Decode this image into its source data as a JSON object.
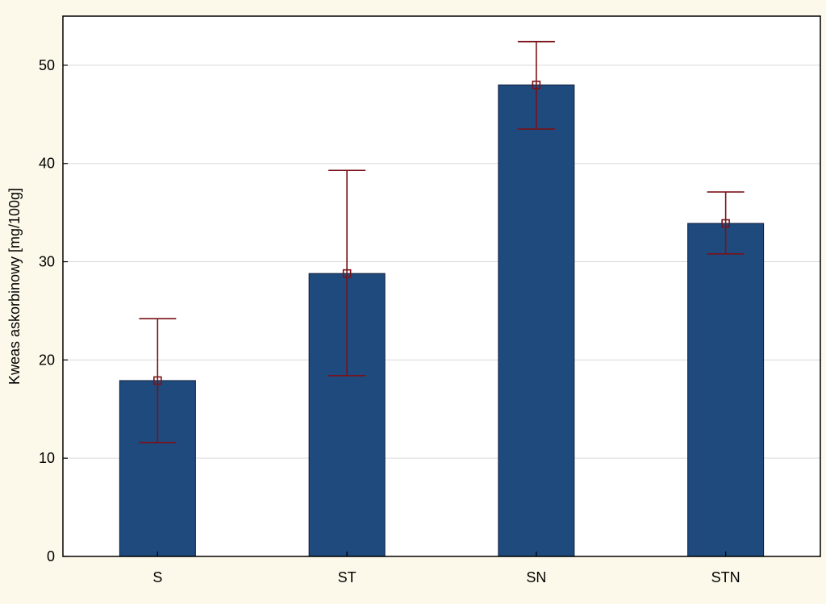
{
  "chart_data": {
    "type": "bar",
    "title": "",
    "xlabel": "",
    "ylabel": "Kweas askorbinowy [mg/100g]",
    "categories": [
      "S",
      "ST",
      "SN",
      "STN"
    ],
    "values": [
      17.9,
      28.8,
      48.0,
      33.9
    ],
    "error_upper": [
      24.2,
      39.3,
      52.4,
      37.1
    ],
    "error_lower": [
      11.6,
      18.4,
      43.5,
      30.8
    ],
    "ylim": [
      0,
      55
    ],
    "yticks": [
      "0",
      "10",
      "20",
      "30",
      "40",
      "50"
    ],
    "grid": true,
    "colors": {
      "background": "#fdf9ea",
      "plot_area": "#ffffff",
      "bar_fill": "#1f4a7d",
      "bar_stroke": "#0f1f3a",
      "error_bar": "#7a1218",
      "grid": "#d9d9d9"
    }
  }
}
